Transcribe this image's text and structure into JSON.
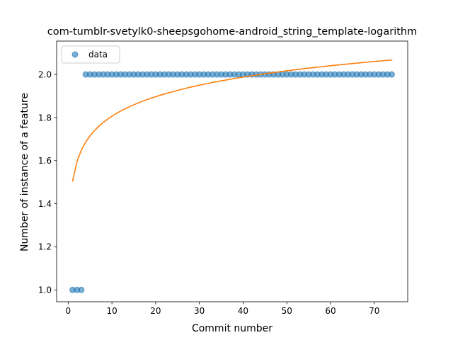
{
  "chart_data": {
    "type": "scatter",
    "title": "com-tumblr-svetylk0-sheepsgohome-android_string_template-logarithm",
    "xlabel": "Commit number",
    "ylabel": "Number of instance of a feature",
    "xlim": [
      -2.65,
      77.65
    ],
    "ylim": [
      0.945,
      2.155
    ],
    "xticks": [
      0,
      10,
      20,
      30,
      40,
      50,
      60,
      70
    ],
    "yticks": [
      1.0,
      1.2,
      1.4,
      1.6,
      1.8,
      2.0
    ],
    "xtick_labels": [
      "0",
      "10",
      "20",
      "30",
      "40",
      "50",
      "60",
      "70"
    ],
    "ytick_labels": [
      "1.0",
      "1.2",
      "1.4",
      "1.6",
      "1.8",
      "2.0"
    ],
    "legend": {
      "placement": "top-left",
      "entries": [
        "data"
      ]
    },
    "grid": false,
    "series": [
      {
        "name": "data",
        "kind": "scatter",
        "color": "#1f77b4",
        "x": [
          1,
          2,
          3,
          4,
          5,
          6,
          7,
          8,
          9,
          10,
          11,
          12,
          13,
          14,
          15,
          16,
          17,
          18,
          19,
          20,
          21,
          22,
          23,
          24,
          25,
          26,
          27,
          28,
          29,
          30,
          31,
          32,
          33,
          34,
          35,
          36,
          37,
          38,
          39,
          40,
          41,
          42,
          43,
          44,
          45,
          46,
          47,
          48,
          49,
          50,
          51,
          52,
          53,
          54,
          55,
          56,
          57,
          58,
          59,
          60,
          61,
          62,
          63,
          64,
          65,
          66,
          67,
          68,
          69,
          70,
          71,
          72,
          73,
          74
        ],
        "y": [
          1,
          1,
          1,
          2,
          2,
          2,
          2,
          2,
          2,
          2,
          2,
          2,
          2,
          2,
          2,
          2,
          2,
          2,
          2,
          2,
          2,
          2,
          2,
          2,
          2,
          2,
          2,
          2,
          2,
          2,
          2,
          2,
          2,
          2,
          2,
          2,
          2,
          2,
          2,
          2,
          2,
          2,
          2,
          2,
          2,
          2,
          2,
          2,
          2,
          2,
          2,
          2,
          2,
          2,
          2,
          2,
          2,
          2,
          2,
          2,
          2,
          2,
          2,
          2,
          2,
          2,
          2,
          2,
          2,
          2,
          2,
          2,
          2,
          2
        ]
      },
      {
        "kind": "line",
        "color": "#ff7f0e",
        "x": [
          1,
          2,
          3,
          4,
          5,
          6,
          7,
          8,
          9,
          10,
          11,
          12,
          13,
          14,
          15,
          16,
          17,
          18,
          19,
          20,
          21,
          22,
          23,
          24,
          25,
          26,
          27,
          28,
          29,
          30,
          31,
          32,
          33,
          34,
          35,
          36,
          37,
          38,
          39,
          40,
          41,
          42,
          43,
          44,
          45,
          46,
          47,
          48,
          49,
          50,
          51,
          52,
          53,
          54,
          55,
          56,
          57,
          58,
          59,
          60,
          61,
          62,
          63,
          64,
          65,
          66,
          67,
          68,
          69,
          70,
          71,
          72,
          73,
          74
        ],
        "y": [
          1.505,
          1.5957,
          1.6488,
          1.6864,
          1.7156,
          1.7394,
          1.7596,
          1.7771,
          1.7925,
          1.8063,
          1.8188,
          1.8302,
          1.8406,
          1.8503,
          1.8593,
          1.8678,
          1.8757,
          1.8832,
          1.8902,
          1.8969,
          1.9033,
          1.9094,
          1.9153,
          1.9208,
          1.9262,
          1.9313,
          1.9363,
          1.941,
          1.9456,
          1.9501,
          1.9544,
          1.9585,
          1.9626,
          1.9665,
          1.9703,
          1.974,
          1.9776,
          1.9811,
          1.9845,
          1.9878,
          1.991,
          1.9942,
          1.9973,
          2.0003,
          2.0032,
          2.0061,
          2.0089,
          2.0116,
          2.0143,
          2.017,
          2.0195,
          2.0221,
          2.0245,
          2.0269,
          2.0293,
          2.0316,
          2.0339,
          2.0362,
          2.0384,
          2.0405,
          2.0426,
          2.0447,
          2.0468,
          2.0488,
          2.0508,
          2.0527,
          2.0546,
          2.0565,
          2.0584,
          2.0602,
          2.062,
          2.0638,
          2.0655,
          2.0672
        ]
      }
    ]
  }
}
